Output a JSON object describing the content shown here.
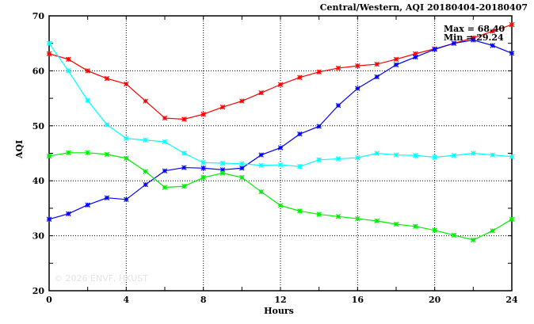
{
  "chart_data": {
    "type": "line",
    "title": "Central/Western, AQI 20180404-20180407",
    "xlabel": "Hours",
    "ylabel": "AQI",
    "xlim": [
      0,
      24
    ],
    "ylim": [
      20,
      70
    ],
    "xticks": [
      "0",
      "4",
      "8",
      "12",
      "16",
      "20",
      "24"
    ],
    "yticks": [
      "20",
      "30",
      "40",
      "50",
      "60",
      "70"
    ],
    "grid": true,
    "annotations": {
      "max": "Max = 68.40",
      "min": "Min = 29.24"
    },
    "watermark": "© 2026 ENVF, HKUST",
    "x": [
      0,
      1,
      2,
      3,
      4,
      5,
      6,
      7,
      8,
      9,
      10,
      11,
      12,
      13,
      14,
      15,
      16,
      17,
      18,
      19,
      20,
      21,
      22,
      23,
      24
    ],
    "series": [
      {
        "name": "Red",
        "color": "#ff0000",
        "values": [
          63.1,
          62.1,
          60.0,
          58.6,
          57.6,
          54.5,
          51.4,
          51.2,
          52.1,
          53.4,
          54.5,
          56.0,
          57.5,
          58.8,
          59.8,
          60.5,
          60.9,
          61.2,
          62.1,
          63.1,
          64.0,
          65.0,
          66.0,
          67.2,
          68.4
        ]
      },
      {
        "name": "Blue",
        "color": "#0000ff",
        "values": [
          33.0,
          34.0,
          35.6,
          36.9,
          36.6,
          39.3,
          41.8,
          42.4,
          42.3,
          42.0,
          42.3,
          44.7,
          46.0,
          48.5,
          49.9,
          53.7,
          56.8,
          58.9,
          61.1,
          62.5,
          63.9,
          65.0,
          65.6,
          64.6,
          63.2
        ]
      },
      {
        "name": "Cyan",
        "color": "#00ffff",
        "values": [
          65.0,
          60.0,
          54.6,
          50.2,
          47.7,
          47.4,
          47.1,
          45.0,
          43.3,
          43.2,
          43.1,
          42.8,
          42.9,
          42.6,
          43.8,
          44.0,
          44.2,
          45.0,
          44.7,
          44.6,
          44.3,
          44.6,
          45.0,
          44.7,
          44.4
        ]
      },
      {
        "name": "Green",
        "color": "#00ee00",
        "values": [
          44.5,
          45.1,
          45.1,
          44.8,
          44.1,
          41.7,
          38.8,
          39.0,
          40.6,
          41.4,
          40.6,
          38.0,
          35.5,
          34.5,
          33.9,
          33.5,
          33.1,
          32.7,
          32.1,
          31.7,
          31.0,
          30.1,
          29.24,
          30.9,
          33.0
        ]
      }
    ]
  }
}
